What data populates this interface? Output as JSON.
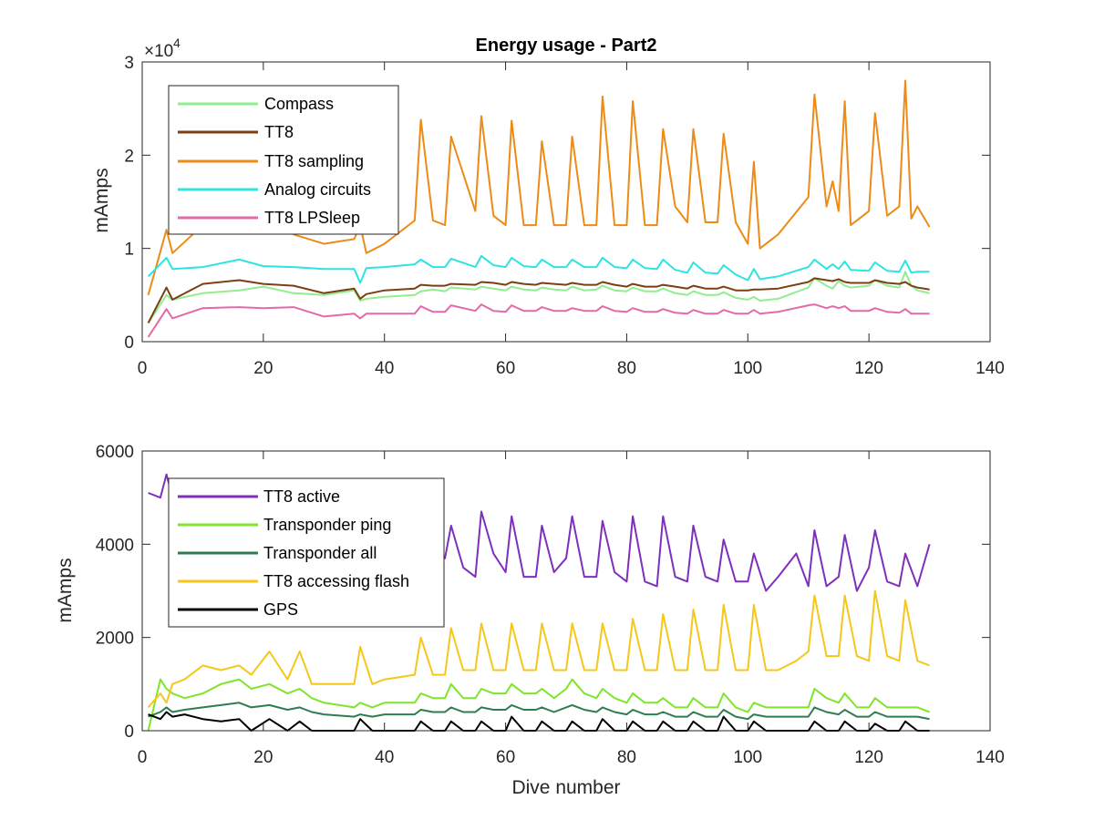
{
  "chart_data": [
    {
      "type": "line",
      "title": "Energy usage - Part2",
      "xlabel": "",
      "ylabel": "mAmps",
      "xlim": [
        0,
        140
      ],
      "ylim": [
        0,
        30000
      ],
      "x_ticks": [
        "0",
        "20",
        "40",
        "60",
        "80",
        "100",
        "120",
        "140"
      ],
      "y_ticks": [
        "0",
        "1",
        "2",
        "3"
      ],
      "y_exponent": {
        "base": "×10",
        "power": "4"
      },
      "grid": false,
      "legend_position": "top-left",
      "x": [
        1,
        4,
        5,
        10,
        16,
        20,
        25,
        30,
        35,
        36,
        37,
        40,
        45,
        46,
        48,
        50,
        51,
        55,
        56,
        58,
        60,
        61,
        63,
        65,
        66,
        68,
        70,
        71,
        73,
        75,
        76,
        78,
        80,
        81,
        83,
        85,
        86,
        88,
        90,
        91,
        93,
        95,
        96,
        98,
        100,
        101,
        102,
        105,
        110,
        111,
        113,
        114,
        115,
        116,
        117,
        120,
        121,
        123,
        125,
        126,
        127,
        128,
        130
      ],
      "series": [
        {
          "name": "Compass",
          "color": "#90ee90",
          "values": [
            2000,
            5000,
            4500,
            5200,
            5500,
            5900,
            5200,
            5000,
            5500,
            4400,
            4600,
            4800,
            5000,
            5400,
            5600,
            5400,
            5800,
            5600,
            5900,
            5700,
            5500,
            5900,
            5600,
            5500,
            5800,
            5600,
            5500,
            5900,
            5500,
            5600,
            6000,
            5500,
            5400,
            5800,
            5400,
            5400,
            5700,
            5200,
            5000,
            5400,
            5000,
            5000,
            5300,
            4700,
            4500,
            4800,
            4400,
            4600,
            5800,
            6800,
            6000,
            5700,
            6500,
            6000,
            5800,
            6000,
            6600,
            6000,
            5800,
            7500,
            6000,
            5500,
            5200
          ]
        },
        {
          "name": "TT8",
          "color": "#7b3f12",
          "values": [
            2000,
            5800,
            4500,
            6200,
            6600,
            6200,
            6000,
            5200,
            5700,
            4600,
            5100,
            5500,
            5700,
            6100,
            6000,
            6000,
            6200,
            6100,
            6400,
            6300,
            6100,
            6400,
            6200,
            6100,
            6300,
            6200,
            6100,
            6300,
            6100,
            6100,
            6400,
            6100,
            5900,
            6200,
            5900,
            5900,
            6100,
            5900,
            5700,
            6000,
            5700,
            5700,
            5900,
            5500,
            5500,
            5600,
            5600,
            5700,
            6400,
            6800,
            6600,
            6500,
            6700,
            6400,
            6300,
            6300,
            6600,
            6300,
            6200,
            6400,
            6000,
            5800,
            5600
          ]
        },
        {
          "name": "TT8 sampling",
          "color": "#ed8b16",
          "values": [
            5000,
            12000,
            9500,
            12500,
            14000,
            13500,
            11500,
            10500,
            11000,
            12500,
            9500,
            10500,
            13000,
            23800,
            13000,
            12500,
            22000,
            14000,
            24200,
            13500,
            12500,
            23700,
            12500,
            12500,
            21500,
            12500,
            12500,
            22000,
            12500,
            12500,
            26300,
            12500,
            12500,
            25800,
            12500,
            12500,
            22800,
            14500,
            12800,
            22800,
            12800,
            12800,
            22300,
            12800,
            10500,
            19300,
            10000,
            11500,
            15500,
            26500,
            14500,
            17200,
            14000,
            25800,
            12500,
            14000,
            24500,
            13500,
            14500,
            28000,
            13200,
            14500,
            12300
          ]
        },
        {
          "name": "Analog circuits",
          "color": "#2fe3e3",
          "values": [
            7000,
            9000,
            7800,
            8000,
            8800,
            8100,
            8000,
            7800,
            7800,
            6300,
            7900,
            8000,
            8300,
            8800,
            8000,
            8000,
            8900,
            8000,
            9200,
            8200,
            8000,
            9000,
            8100,
            8000,
            8800,
            8000,
            8000,
            8800,
            8000,
            8000,
            9000,
            8000,
            7900,
            8800,
            7900,
            7800,
            8800,
            7700,
            7400,
            8500,
            7400,
            7300,
            8200,
            7200,
            6600,
            7800,
            6700,
            7000,
            8000,
            8800,
            7800,
            8300,
            7800,
            8600,
            7700,
            7600,
            8500,
            7600,
            7500,
            8700,
            7400,
            7500,
            7500
          ]
        },
        {
          "name": "TT8 LPSleep",
          "color": "#e36aa8",
          "values": [
            500,
            3500,
            2500,
            3600,
            3700,
            3600,
            3700,
            2700,
            3000,
            2500,
            3000,
            3000,
            3000,
            3800,
            3200,
            3200,
            3900,
            3300,
            4000,
            3300,
            3200,
            3900,
            3300,
            3300,
            3700,
            3300,
            3300,
            3600,
            3300,
            3300,
            3800,
            3300,
            3200,
            3600,
            3200,
            3200,
            3500,
            3100,
            3000,
            3400,
            3000,
            3000,
            3400,
            3000,
            3000,
            3400,
            3000,
            3200,
            3900,
            4000,
            3600,
            3800,
            3600,
            3800,
            3300,
            3300,
            3600,
            3200,
            3100,
            3500,
            3000,
            3000,
            3000
          ]
        }
      ]
    },
    {
      "type": "line",
      "title": "",
      "xlabel": "Dive number",
      "ylabel": "mAmps",
      "xlim": [
        0,
        140
      ],
      "ylim": [
        0,
        6000
      ],
      "x_ticks": [
        "0",
        "20",
        "40",
        "60",
        "80",
        "100",
        "120",
        "140"
      ],
      "y_ticks": [
        "0",
        "2000",
        "4000",
        "6000"
      ],
      "grid": false,
      "legend_position": "top-left",
      "x": [
        1,
        3,
        4,
        5,
        7,
        10,
        13,
        16,
        18,
        21,
        24,
        26,
        28,
        30,
        35,
        36,
        38,
        40,
        45,
        46,
        48,
        50,
        51,
        53,
        55,
        56,
        58,
        60,
        61,
        63,
        65,
        66,
        68,
        70,
        71,
        73,
        75,
        76,
        78,
        80,
        81,
        83,
        85,
        86,
        88,
        90,
        91,
        93,
        95,
        96,
        98,
        100,
        101,
        103,
        105,
        108,
        110,
        111,
        113,
        115,
        116,
        118,
        120,
        121,
        123,
        125,
        126,
        128,
        130
      ],
      "series": [
        {
          "name": "TT8 active",
          "color": "#7e2fbd",
          "values": [
            5100,
            5000,
            5500,
            5000,
            4800,
            4700,
            4600,
            4500,
            4400,
            4300,
            4200,
            4300,
            4100,
            4200,
            4200,
            4500,
            4300,
            4400,
            4300,
            4600,
            4000,
            3700,
            4400,
            3500,
            3300,
            4700,
            3800,
            3400,
            4600,
            3300,
            3300,
            4400,
            3400,
            3700,
            4600,
            3300,
            3300,
            4500,
            3400,
            3200,
            4600,
            3200,
            3100,
            4600,
            3300,
            3200,
            4400,
            3300,
            3200,
            4100,
            3200,
            3200,
            3800,
            3000,
            3300,
            3800,
            3100,
            4300,
            3100,
            3300,
            4200,
            3000,
            3500,
            4300,
            3200,
            3100,
            3800,
            3100,
            4000
          ]
        },
        {
          "name": "Transponder ping",
          "color": "#7ee52b",
          "values": [
            0,
            1100,
            900,
            800,
            700,
            800,
            1000,
            1100,
            900,
            1000,
            800,
            900,
            700,
            600,
            500,
            600,
            500,
            600,
            600,
            800,
            700,
            700,
            1000,
            700,
            700,
            900,
            800,
            800,
            1000,
            800,
            800,
            900,
            700,
            900,
            1100,
            800,
            700,
            900,
            700,
            600,
            800,
            600,
            600,
            700,
            500,
            500,
            700,
            500,
            500,
            800,
            500,
            400,
            600,
            500,
            500,
            500,
            500,
            900,
            700,
            600,
            800,
            500,
            500,
            700,
            500,
            500,
            500,
            500,
            400
          ]
        },
        {
          "name": "Transponder all",
          "color": "#2e7d52",
          "values": [
            300,
            400,
            500,
            400,
            450,
            500,
            550,
            600,
            500,
            550,
            450,
            500,
            400,
            350,
            300,
            350,
            300,
            350,
            350,
            450,
            400,
            400,
            500,
            400,
            400,
            500,
            450,
            450,
            550,
            450,
            450,
            500,
            400,
            500,
            550,
            450,
            400,
            500,
            400,
            350,
            450,
            350,
            350,
            400,
            300,
            300,
            400,
            300,
            300,
            450,
            300,
            250,
            350,
            300,
            300,
            300,
            300,
            500,
            400,
            350,
            450,
            300,
            300,
            400,
            300,
            300,
            300,
            300,
            250
          ]
        },
        {
          "name": "TT8 accessing flash",
          "color": "#f5c71a",
          "values": [
            500,
            800,
            600,
            1000,
            1100,
            1400,
            1300,
            1400,
            1200,
            1700,
            1100,
            1700,
            1000,
            1000,
            1000,
            1800,
            1000,
            1100,
            1200,
            2000,
            1200,
            1200,
            2200,
            1300,
            1300,
            2300,
            1300,
            1300,
            2300,
            1300,
            1300,
            2300,
            1300,
            1300,
            2300,
            1300,
            1300,
            2300,
            1300,
            1300,
            2400,
            1300,
            1300,
            2500,
            1300,
            1300,
            2600,
            1300,
            1300,
            2700,
            1300,
            1300,
            2700,
            1300,
            1300,
            1500,
            1700,
            2900,
            1600,
            1600,
            2900,
            1600,
            1500,
            3000,
            1600,
            1500,
            2800,
            1500,
            1400
          ]
        },
        {
          "name": "GPS",
          "color": "#000000",
          "values": [
            350,
            250,
            400,
            300,
            350,
            250,
            200,
            250,
            0,
            250,
            0,
            200,
            0,
            0,
            0,
            250,
            0,
            0,
            0,
            200,
            0,
            0,
            200,
            0,
            0,
            200,
            0,
            0,
            300,
            0,
            0,
            200,
            0,
            0,
            200,
            0,
            0,
            250,
            0,
            0,
            200,
            0,
            0,
            200,
            0,
            0,
            200,
            0,
            0,
            300,
            0,
            0,
            200,
            0,
            0,
            0,
            0,
            200,
            0,
            0,
            200,
            0,
            0,
            150,
            0,
            0,
            200,
            0,
            0
          ]
        }
      ]
    }
  ]
}
